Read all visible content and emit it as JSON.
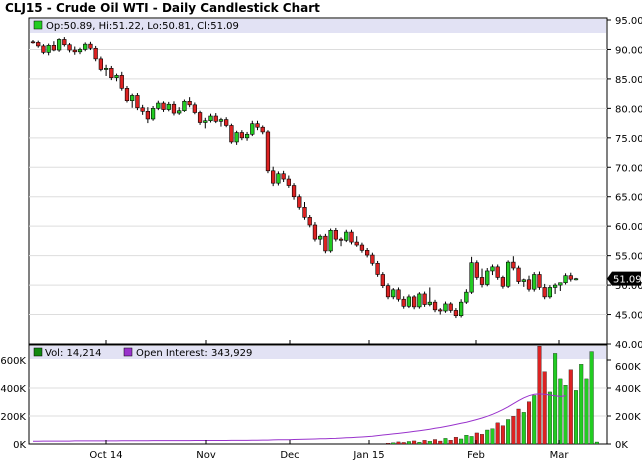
{
  "chart_data": [
    {
      "type": "candlestick",
      "title": "CLJ15 - Crude Oil WTI - Daily Candlestick Chart",
      "legend": {
        "label": "Op:50.89, Hi:51.22, Lo:50.81, Cl:51.09",
        "color": "#22cc22"
      },
      "last_price": "51.09",
      "ylim": [
        40,
        95
      ],
      "yticks": [
        "95.00",
        "90.00",
        "85.00",
        "80.00",
        "75.00",
        "70.00",
        "65.00",
        "60.00",
        "55.00",
        "50.00",
        "45.00",
        "40.00"
      ],
      "x_categories": [
        "Oct 14",
        "Nov",
        "Dec",
        "Jan 15",
        "Feb",
        "Mar"
      ],
      "up_color": "#22cc22",
      "down_color": "#dd2222",
      "series": [
        {
          "values": [
            [
              91.3,
              91.6,
              91.0,
              91.2
            ],
            [
              91.2,
              91.5,
              90.3,
              90.6
            ],
            [
              90.6,
              90.9,
              89.2,
              89.5
            ],
            [
              89.5,
              91.0,
              89.0,
              90.7
            ],
            [
              90.7,
              91.4,
              89.7,
              89.9
            ],
            [
              89.9,
              91.9,
              89.6,
              91.7
            ],
            [
              91.7,
              92.1,
              90.5,
              90.8
            ],
            [
              90.8,
              91.1,
              89.5,
              89.9
            ],
            [
              89.9,
              90.5,
              89.1,
              89.6
            ],
            [
              89.6,
              90.3,
              89.2,
              90.0
            ],
            [
              90.0,
              91.2,
              89.7,
              90.9
            ],
            [
              90.9,
              91.3,
              89.9,
              90.2
            ],
            [
              90.2,
              90.6,
              88.0,
              88.4
            ],
            [
              88.4,
              88.8,
              86.3,
              86.6
            ],
            [
              86.6,
              87.4,
              85.5,
              86.8
            ],
            [
              86.8,
              87.2,
              84.8,
              85.2
            ],
            [
              85.2,
              85.9,
              84.6,
              85.6
            ],
            [
              85.6,
              86.2,
              83.0,
              83.4
            ],
            [
              83.4,
              83.8,
              81.0,
              81.3
            ],
            [
              81.3,
              82.5,
              80.1,
              82.2
            ],
            [
              82.2,
              82.6,
              79.7,
              80.1
            ],
            [
              80.1,
              80.6,
              78.9,
              79.5
            ],
            [
              79.5,
              80.2,
              77.5,
              78.2
            ],
            [
              78.2,
              80.4,
              77.9,
              80.0
            ],
            [
              80.0,
              81.3,
              79.7,
              80.9
            ],
            [
              80.9,
              81.2,
              79.4,
              79.8
            ],
            [
              79.8,
              81.1,
              79.5,
              80.7
            ],
            [
              80.7,
              81.2,
              78.8,
              79.2
            ],
            [
              79.2,
              80.2,
              78.9,
              79.6
            ],
            [
              79.6,
              81.5,
              79.4,
              81.2
            ],
            [
              81.2,
              81.9,
              80.2,
              80.6
            ],
            [
              80.6,
              81.0,
              79.0,
              79.3
            ],
            [
              79.3,
              79.6,
              77.2,
              77.6
            ],
            [
              77.6,
              78.4,
              76.6,
              77.9
            ],
            [
              77.9,
              79.1,
              77.6,
              78.7
            ],
            [
              78.7,
              79.2,
              77.5,
              77.8
            ],
            [
              77.8,
              78.4,
              76.9,
              78.1
            ],
            [
              78.1,
              78.5,
              76.8,
              77.1
            ],
            [
              77.1,
              77.4,
              74.0,
              74.3
            ],
            [
              74.3,
              76.2,
              73.8,
              75.9
            ],
            [
              75.9,
              76.3,
              74.6,
              75.0
            ],
            [
              75.0,
              76.0,
              74.5,
              75.6
            ],
            [
              75.6,
              77.9,
              75.3,
              77.4
            ],
            [
              77.4,
              77.9,
              76.3,
              76.8
            ],
            [
              76.8,
              77.1,
              75.6,
              76.0
            ],
            [
              76.0,
              76.3,
              69.0,
              69.4
            ],
            [
              69.4,
              70.1,
              66.8,
              67.3
            ],
            [
              67.3,
              69.3,
              66.9,
              68.9
            ],
            [
              68.9,
              69.4,
              67.5,
              68.0
            ],
            [
              68.0,
              68.6,
              66.5,
              66.9
            ],
            [
              66.9,
              67.3,
              64.5,
              65.0
            ],
            [
              65.0,
              65.4,
              62.8,
              63.2
            ],
            [
              63.2,
              64.1,
              61.1,
              61.5
            ],
            [
              61.5,
              61.9,
              59.8,
              60.2
            ],
            [
              60.2,
              60.7,
              57.4,
              57.8
            ],
            [
              57.8,
              58.6,
              56.8,
              58.3
            ],
            [
              58.3,
              58.7,
              55.4,
              55.8
            ],
            [
              55.8,
              59.6,
              55.5,
              59.3
            ],
            [
              59.3,
              59.7,
              57.4,
              57.8
            ],
            [
              57.8,
              58.1,
              56.6,
              57.6
            ],
            [
              57.6,
              59.4,
              57.3,
              59.0
            ],
            [
              59.0,
              59.4,
              56.9,
              57.3
            ],
            [
              57.3,
              58.3,
              56.5,
              56.8
            ],
            [
              56.8,
              57.2,
              55.5,
              55.9
            ],
            [
              55.9,
              56.3,
              54.7,
              55.1
            ],
            [
              55.1,
              55.5,
              53.3,
              53.7
            ],
            [
              53.7,
              54.1,
              51.4,
              51.8
            ],
            [
              51.8,
              52.2,
              49.5,
              49.9
            ],
            [
              49.9,
              50.3,
              47.6,
              48.0
            ],
            [
              48.0,
              49.5,
              47.6,
              49.2
            ],
            [
              49.2,
              49.6,
              47.2,
              47.6
            ],
            [
              47.6,
              48.1,
              46.0,
              46.4
            ],
            [
              46.4,
              48.4,
              46.1,
              48.0
            ],
            [
              48.0,
              48.3,
              45.9,
              46.3
            ],
            [
              46.3,
              48.8,
              46.0,
              48.5
            ],
            [
              48.5,
              48.9,
              46.3,
              46.7
            ],
            [
              46.7,
              49.6,
              46.4,
              47.1
            ],
            [
              47.1,
              47.5,
              45.4,
              45.8
            ],
            [
              45.8,
              46.1,
              45.0,
              45.6
            ],
            [
              45.6,
              47.2,
              45.3,
              46.8
            ],
            [
              46.8,
              47.1,
              45.3,
              45.7
            ],
            [
              45.7,
              46.1,
              44.4,
              44.8
            ],
            [
              44.8,
              47.6,
              44.5,
              47.1
            ],
            [
              47.1,
              49.3,
              46.8,
              48.8
            ],
            [
              48.8,
              54.8,
              48.5,
              53.8
            ],
            [
              53.8,
              54.2,
              50.9,
              51.3
            ],
            [
              51.3,
              52.8,
              49.6,
              50.1
            ],
            [
              50.1,
              52.9,
              49.8,
              52.4
            ],
            [
              52.4,
              53.5,
              51.7,
              53.1
            ],
            [
              53.1,
              53.5,
              50.9,
              51.3
            ],
            [
              51.3,
              51.6,
              49.4,
              49.8
            ],
            [
              49.8,
              54.2,
              49.5,
              53.9
            ],
            [
              53.9,
              54.9,
              52.5,
              52.9
            ],
            [
              52.9,
              53.3,
              50.2,
              50.6
            ],
            [
              50.6,
              51.1,
              49.7,
              50.9
            ],
            [
              50.9,
              51.6,
              48.9,
              49.3
            ],
            [
              49.3,
              52.2,
              48.9,
              51.8
            ],
            [
              51.8,
              52.3,
              49.2,
              49.6
            ],
            [
              49.6,
              50.2,
              47.6,
              48.0
            ],
            [
              48.0,
              50.0,
              47.7,
              49.6
            ],
            [
              49.6,
              50.3,
              48.5,
              50.0
            ],
            [
              50.0,
              50.4,
              49.0,
              50.4
            ],
            [
              50.4,
              52.0,
              50.1,
              51.6
            ],
            [
              51.6,
              52.1,
              50.6,
              51.0
            ],
            [
              50.89,
              51.22,
              50.81,
              51.09
            ]
          ]
        }
      ]
    },
    {
      "type": "bar",
      "legend": [
        {
          "label": "Vol: 14,214",
          "color": "#118811"
        },
        {
          "label": "Open Interest: 343,929",
          "color": "#9933cc"
        }
      ],
      "ylim": [
        0,
        600000
      ],
      "yticks_left": [
        "600K",
        "400K",
        "200K",
        "0K"
      ],
      "yticks_right": [
        "600K",
        "400K",
        "200K",
        "0K"
      ],
      "series": [
        {
          "name": "Vol",
          "values": [
            0,
            0,
            0,
            0,
            0,
            0,
            0,
            0,
            0,
            0,
            0,
            0,
            0,
            0,
            0,
            0,
            0,
            0,
            0,
            0,
            0,
            0,
            0,
            0,
            0,
            0,
            0,
            0,
            0,
            0,
            0,
            0,
            0,
            0,
            0,
            0,
            0,
            0,
            0,
            0,
            0,
            0,
            0,
            0,
            0,
            0,
            0,
            0,
            0,
            0,
            0,
            0,
            0,
            0,
            0,
            0,
            0,
            0,
            0,
            0,
            0,
            0,
            0,
            0,
            0,
            0,
            0,
            0,
            6000,
            9000,
            15000,
            11000,
            18000,
            22000,
            13000,
            26000,
            19000,
            32000,
            21000,
            40000,
            27000,
            48000,
            36000,
            63000,
            54000,
            79000,
            69000,
            100000,
            109000,
            151000,
            131000,
            175000,
            198000,
            250000,
            226000,
            302000,
            347000,
            699000,
            516000,
            372000,
            647000,
            465000,
            420000,
            530000,
            383000,
            569000,
            465000,
            660000,
            14214
          ]
        },
        {
          "name": "Open Interest",
          "values": [
            20000,
            20000,
            21000,
            21000,
            21000,
            21000,
            21000,
            21000,
            22000,
            22000,
            22000,
            22000,
            22000,
            22000,
            22000,
            22000,
            22000,
            23000,
            23000,
            23000,
            23000,
            23000,
            23000,
            24000,
            24000,
            24000,
            24000,
            24000,
            24000,
            24000,
            24000,
            25000,
            25000,
            25000,
            25000,
            25000,
            25000,
            25000,
            26000,
            26000,
            26000,
            26000,
            27000,
            27000,
            28000,
            28000,
            29000,
            30000,
            30000,
            31000,
            32000,
            33000,
            34000,
            35000,
            36000,
            37000,
            38000,
            39000,
            40000,
            42000,
            44000,
            46000,
            48000,
            50000,
            53000,
            56000,
            60000,
            64000,
            68000,
            72000,
            76000,
            80000,
            85000,
            90000,
            95000,
            100000,
            106000,
            112000,
            118000,
            125000,
            132000,
            140000,
            148000,
            156000,
            165000,
            175000,
            186000,
            198000,
            212000,
            228000,
            246000,
            266000,
            288000,
            310000,
            330000,
            345000,
            355000,
            358000,
            355000,
            350000,
            345000,
            340000,
            343929
          ]
        }
      ]
    }
  ]
}
